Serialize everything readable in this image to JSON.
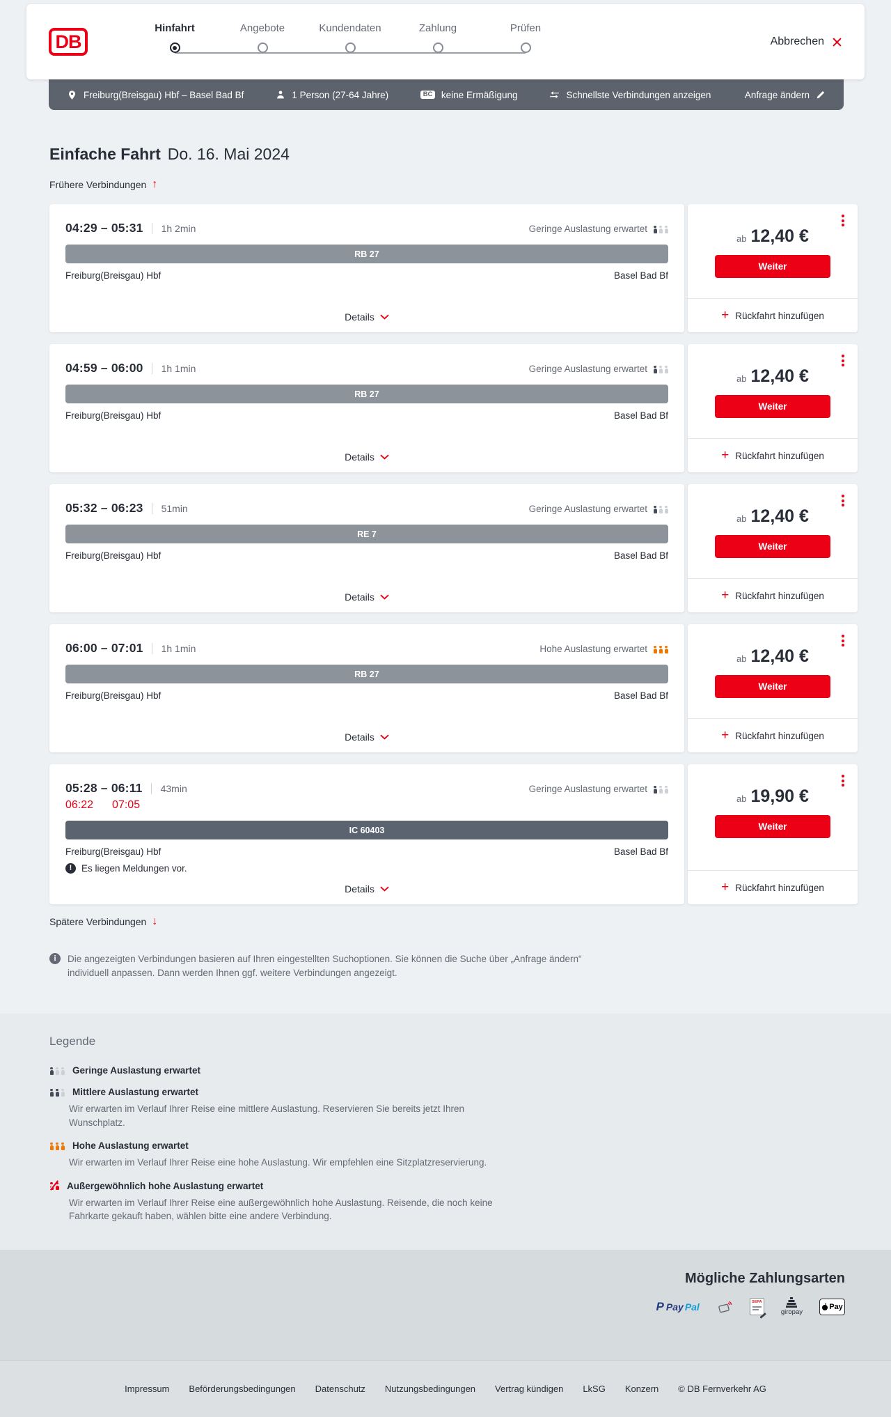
{
  "colors": {
    "accent": "#ec0016",
    "bar_regional": "#8c939b",
    "bar_longdistance": "#5b6270",
    "occupancy_high": "#f07800",
    "searchbar_bg": "#5c636c"
  },
  "header": {
    "logo_text": "DB",
    "steps": [
      {
        "label": "Hinfahrt",
        "active": true
      },
      {
        "label": "Angebote",
        "active": false
      },
      {
        "label": "Kundendaten",
        "active": false
      },
      {
        "label": "Zahlung",
        "active": false
      },
      {
        "label": "Prüfen",
        "active": false
      }
    ],
    "cancel_label": "Abbrechen"
  },
  "searchbar": {
    "route": "Freiburg(Breisgau) Hbf – Basel Bad Bf",
    "passengers": "1 Person (27-64 Jahre)",
    "bahncard_badge": "BC",
    "discount": "keine Ermäßigung",
    "sort_option": "Schnellste Verbindungen anzeigen",
    "edit_request": "Anfrage ändern"
  },
  "results": {
    "title": "Einfache Fahrt",
    "date": "Do. 16. Mai 2024",
    "earlier_label": "Frühere Verbindungen",
    "later_label": "Spätere Verbindungen",
    "connections": [
      {
        "times": "04:29 – 05:31",
        "duration": "1h 2min",
        "occupancy_label": "Geringe Auslastung erwartet",
        "occupancy_level": "low",
        "train": "RB 27",
        "train_type": "regional",
        "origin": "Freiburg(Breisgau) Hbf",
        "destination": "Basel Bad Bf",
        "details_label": "Details",
        "price_prefix": "ab",
        "price": "12,40 €",
        "weiter_label": "Weiter",
        "return_label": "Rückfahrt hinzufügen"
      },
      {
        "times": "04:59 – 06:00",
        "duration": "1h 1min",
        "occupancy_label": "Geringe Auslastung erwartet",
        "occupancy_level": "low",
        "train": "RB 27",
        "train_type": "regional",
        "origin": "Freiburg(Breisgau) Hbf",
        "destination": "Basel Bad Bf",
        "details_label": "Details",
        "price_prefix": "ab",
        "price": "12,40 €",
        "weiter_label": "Weiter",
        "return_label": "Rückfahrt hinzufügen"
      },
      {
        "times": "05:32 – 06:23",
        "duration": "51min",
        "occupancy_label": "Geringe Auslastung erwartet",
        "occupancy_level": "low",
        "train": "RE 7",
        "train_type": "regional",
        "origin": "Freiburg(Breisgau) Hbf",
        "destination": "Basel Bad Bf",
        "details_label": "Details",
        "price_prefix": "ab",
        "price": "12,40 €",
        "weiter_label": "Weiter",
        "return_label": "Rückfahrt hinzufügen"
      },
      {
        "times": "06:00 – 07:01",
        "duration": "1h 1min",
        "occupancy_label": "Hohe Auslastung erwartet",
        "occupancy_level": "high",
        "train": "RB 27",
        "train_type": "regional",
        "origin": "Freiburg(Breisgau) Hbf",
        "destination": "Basel Bad Bf",
        "details_label": "Details",
        "price_prefix": "ab",
        "price": "12,40 €",
        "weiter_label": "Weiter",
        "return_label": "Rückfahrt hinzufügen"
      },
      {
        "times": "05:28 – 06:11",
        "duration": "43min",
        "occupancy_label": "Geringe Auslastung erwartet",
        "occupancy_level": "low",
        "delayed": {
          "dep": "06:22",
          "arr": "07:05"
        },
        "train": "IC 60403",
        "train_type": "longdistance",
        "origin": "Freiburg(Breisgau) Hbf",
        "destination": "Basel Bad Bf",
        "notice": "Es liegen Meldungen vor.",
        "details_label": "Details",
        "price_prefix": "ab",
        "price": "19,90 €",
        "weiter_label": "Weiter",
        "return_label": "Rückfahrt hinzufügen"
      }
    ]
  },
  "info_note": "Die angezeigten Verbindungen basieren auf Ihren eingestellten Suchoptionen. Sie können die Suche über „Anfrage ändern“ individuell anpassen. Dann werden Ihnen ggf. weitere Verbindungen angezeigt.",
  "legend": {
    "heading": "Legende",
    "items": [
      {
        "label": "Geringe Auslastung erwartet",
        "level": "low"
      },
      {
        "label": "Mittlere Auslastung erwartet",
        "level": "medium",
        "description": "Wir erwarten im Verlauf Ihrer Reise eine mittlere Auslastung. Reservieren Sie bereits jetzt Ihren Wunschplatz."
      },
      {
        "label": "Hohe Auslastung erwartet",
        "level": "high",
        "description": "Wir erwarten im Verlauf Ihrer Reise eine hohe Auslastung. Wir empfehlen eine Sitzplatzreservierung."
      },
      {
        "label": "Außergewöhnlich hohe Auslastung erwartet",
        "level": "exceptional",
        "description": "Wir erwarten im Verlauf Ihrer Reise eine außergewöhnlich hohe Auslastung. Reisende, die noch keine Fahrkarte gekauft haben, wählen bitte eine andere Verbindung."
      }
    ]
  },
  "payment": {
    "heading": "Mögliche Zahlungsarten",
    "paypal_mark": "P",
    "paypal_word1": "Pay",
    "paypal_word2": "Pal",
    "sepa_text": "SEPA",
    "giropay_text": "giropay",
    "applepay_text": "Pay"
  },
  "footer": {
    "links": [
      "Impressum",
      "Beförderungsbedingungen",
      "Datenschutz",
      "Nutzungsbedingungen",
      "Vertrag kündigen",
      "LkSG",
      "Konzern"
    ],
    "copyright": "© DB Fernverkehr AG"
  }
}
